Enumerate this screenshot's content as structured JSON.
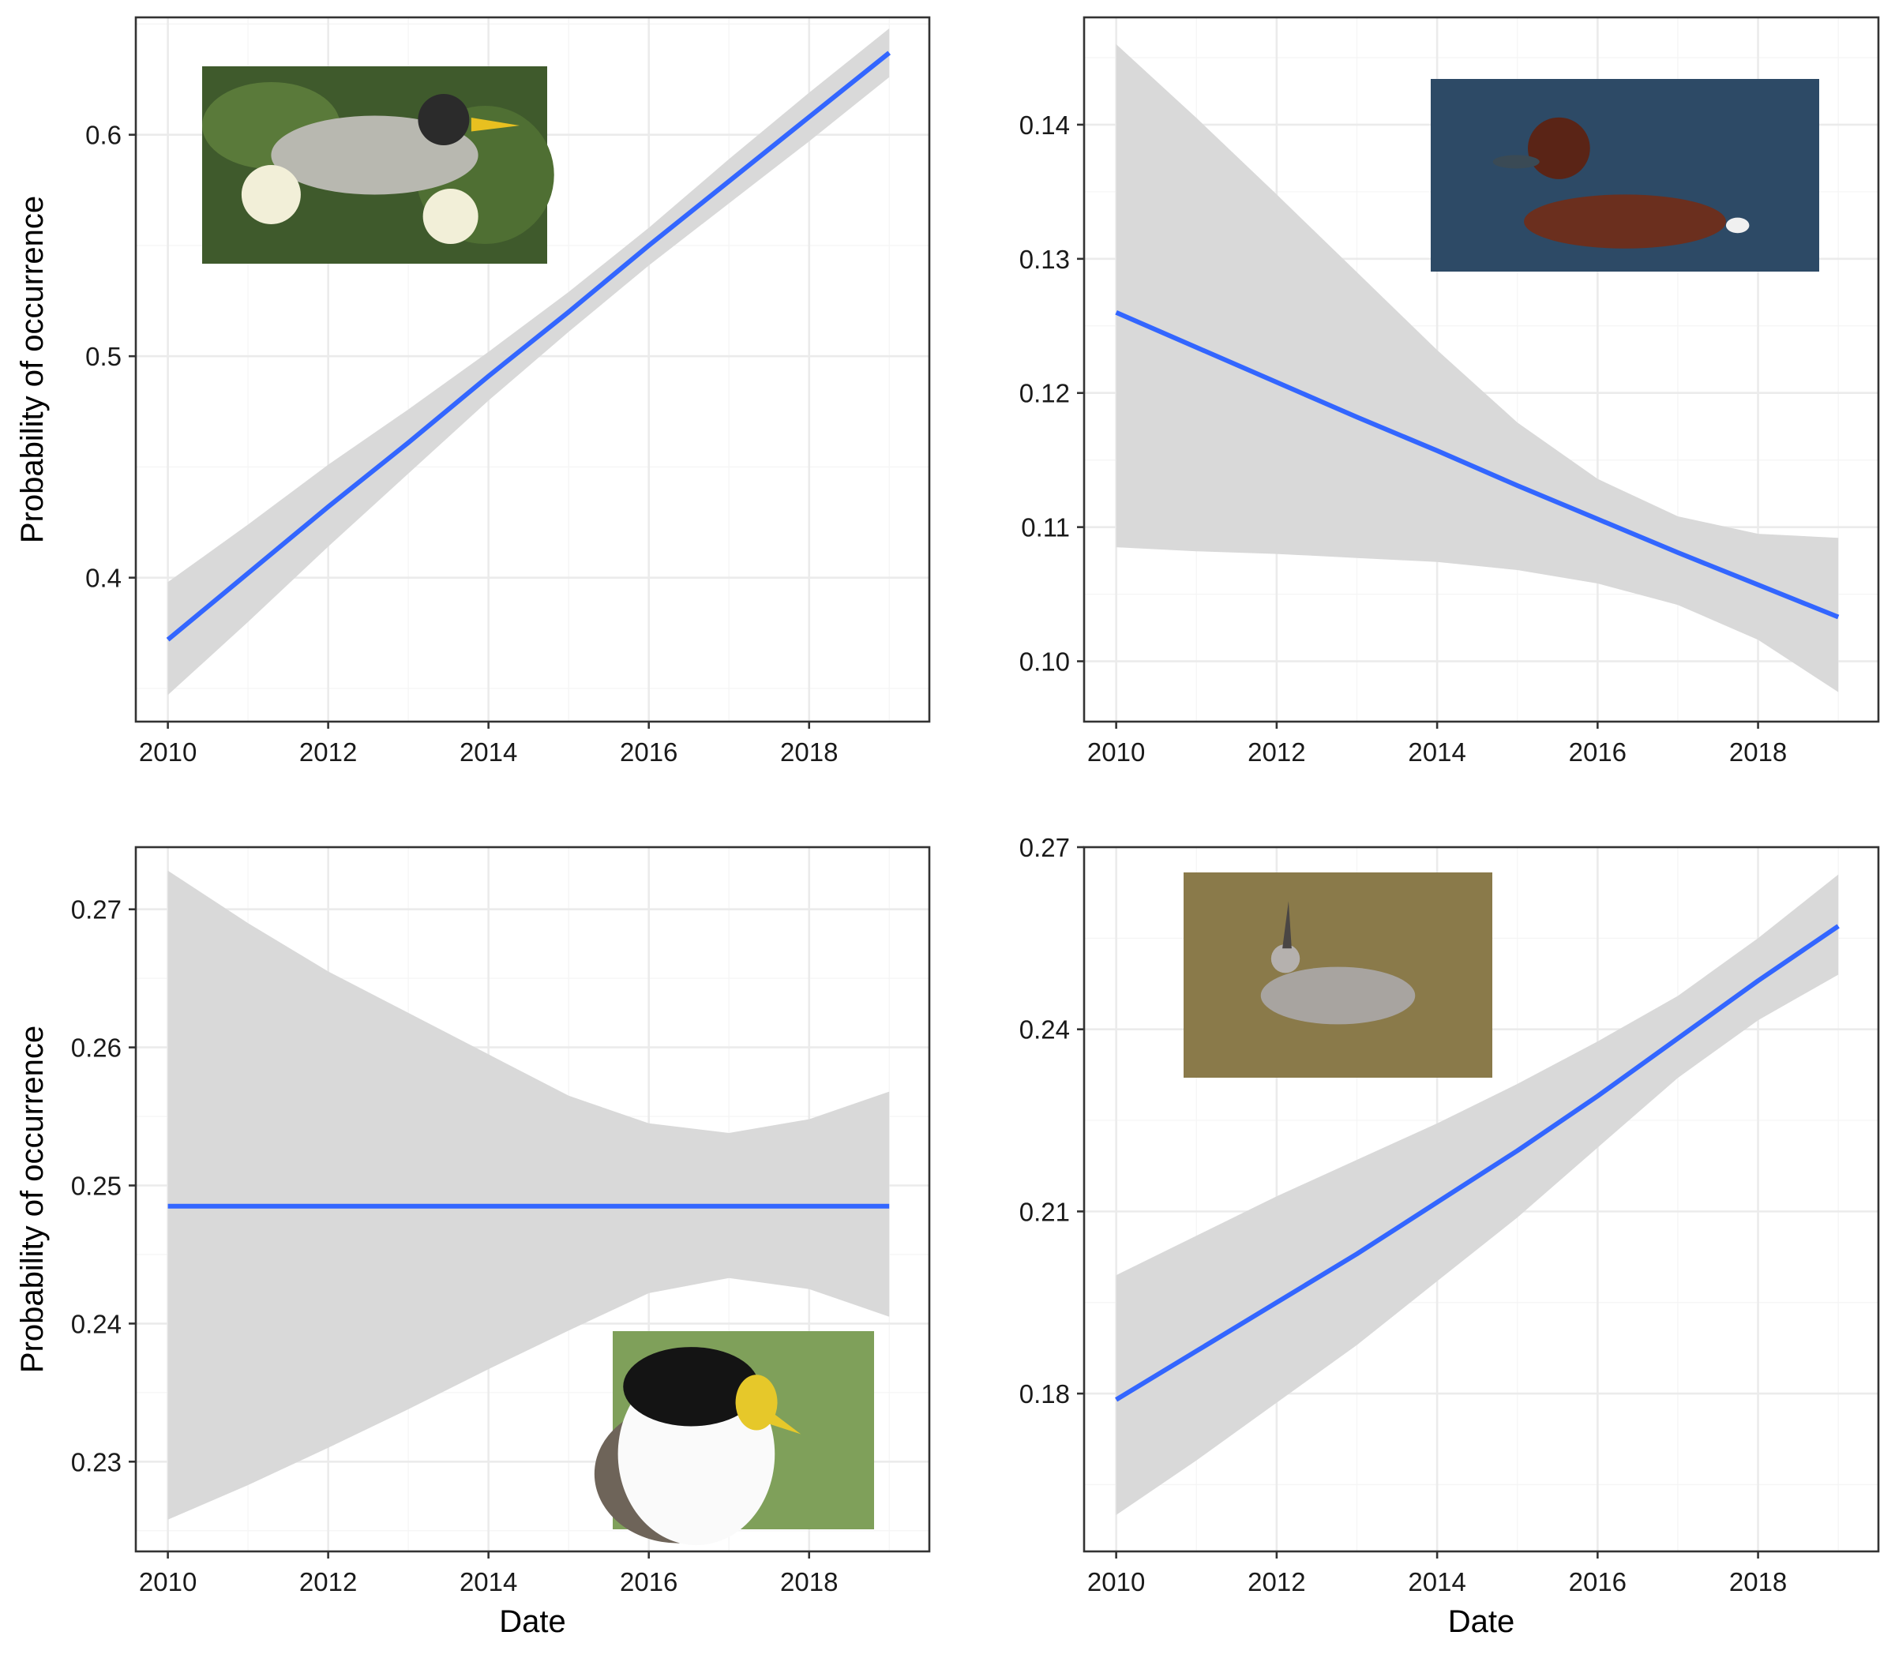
{
  "chart_data": [
    {
      "type": "line",
      "panel": "top-left",
      "image_icon": "noisy-miner-photo",
      "xlabel": "",
      "ylabel": "Probability of occurrence",
      "xlim": [
        2009.6,
        2019.5
      ],
      "ylim": [
        0.335,
        0.653
      ],
      "x_ticks": [
        2010,
        2012,
        2014,
        2016,
        2018
      ],
      "x_tick_labels": [
        "2010",
        "2012",
        "2014",
        "2016",
        "2018"
      ],
      "y_ticks": [
        0.4,
        0.5,
        0.6
      ],
      "y_tick_labels": [
        "0.4",
        "0.5",
        "0.6"
      ],
      "grid": true,
      "series": [
        {
          "line_color": "#3366ff",
          "x": [
            2010,
            2011,
            2012,
            2013,
            2014,
            2015,
            2016,
            2017,
            2018,
            2019
          ],
          "y": [
            0.372,
            0.402,
            0.432,
            0.461,
            0.491,
            0.52,
            0.55,
            0.579,
            0.608,
            0.637
          ],
          "ci_lower": [
            0.347,
            0.38,
            0.414,
            0.447,
            0.48,
            0.511,
            0.541,
            0.569,
            0.597,
            0.626
          ],
          "ci_upper": [
            0.398,
            0.424,
            0.451,
            0.476,
            0.502,
            0.529,
            0.558,
            0.589,
            0.619,
            0.648
          ]
        }
      ]
    },
    {
      "type": "line",
      "panel": "top-right",
      "image_icon": "hardhead-duck-photo",
      "xlabel": "",
      "ylabel": "",
      "xlim": [
        2009.6,
        2019.5
      ],
      "ylim": [
        0.0955,
        0.148
      ],
      "x_ticks": [
        2010,
        2012,
        2014,
        2016,
        2018
      ],
      "x_tick_labels": [
        "2010",
        "2012",
        "2014",
        "2016",
        "2018"
      ],
      "y_ticks": [
        0.1,
        0.11,
        0.12,
        0.13,
        0.14
      ],
      "y_tick_labels": [
        "0.10",
        "0.11",
        "0.12",
        "0.13",
        "0.14"
      ],
      "grid": true,
      "series": [
        {
          "line_color": "#3366ff",
          "x": [
            2010,
            2011,
            2012,
            2013,
            2014,
            2015,
            2016,
            2017,
            2018,
            2019
          ],
          "y": [
            0.126,
            0.1234,
            0.1208,
            0.1182,
            0.1157,
            0.1131,
            0.1106,
            0.1081,
            0.1057,
            0.1033
          ],
          "ci_lower": [
            0.1085,
            0.1082,
            0.108,
            0.1077,
            0.1074,
            0.1068,
            0.1058,
            0.1042,
            0.1016,
            0.0977
          ],
          "ci_upper": [
            0.146,
            0.1405,
            0.1348,
            0.129,
            0.1232,
            0.1178,
            0.1136,
            0.1108,
            0.1095,
            0.1092
          ]
        }
      ]
    },
    {
      "type": "line",
      "panel": "bottom-left",
      "image_icon": "masked-lapwing-photo",
      "xlabel": "Date",
      "ylabel": "Probability of occurrence",
      "xlim": [
        2009.6,
        2019.5
      ],
      "ylim": [
        0.2235,
        0.2745
      ],
      "x_ticks": [
        2010,
        2012,
        2014,
        2016,
        2018
      ],
      "x_tick_labels": [
        "2010",
        "2012",
        "2014",
        "2016",
        "2018"
      ],
      "y_ticks": [
        0.23,
        0.24,
        0.25,
        0.26,
        0.27
      ],
      "y_tick_labels": [
        "0.23",
        "0.24",
        "0.25",
        "0.26",
        "0.27"
      ],
      "grid": true,
      "series": [
        {
          "line_color": "#3366ff",
          "x": [
            2010,
            2011,
            2012,
            2013,
            2014,
            2015,
            2016,
            2017,
            2018,
            2019
          ],
          "y": [
            0.2485,
            0.2485,
            0.2485,
            0.2485,
            0.2485,
            0.2485,
            0.2485,
            0.2485,
            0.2485,
            0.2485
          ],
          "ci_lower": [
            0.2258,
            0.2283,
            0.231,
            0.2338,
            0.2367,
            0.2395,
            0.2422,
            0.2433,
            0.2425,
            0.2405
          ],
          "ci_upper": [
            0.2728,
            0.269,
            0.2655,
            0.2625,
            0.2595,
            0.2565,
            0.2545,
            0.2538,
            0.2548,
            0.2568
          ]
        }
      ]
    },
    {
      "type": "line",
      "panel": "bottom-right",
      "image_icon": "crested-pigeon-photo",
      "xlabel": "Date",
      "ylabel": "",
      "xlim": [
        2009.6,
        2019.5
      ],
      "ylim": [
        0.154,
        0.27
      ],
      "x_ticks": [
        2010,
        2012,
        2014,
        2016,
        2018
      ],
      "x_tick_labels": [
        "2010",
        "2012",
        "2014",
        "2016",
        "2018"
      ],
      "y_ticks": [
        0.18,
        0.21,
        0.24,
        0.27
      ],
      "y_tick_labels": [
        "0.18",
        "0.21",
        "0.24",
        "0.27"
      ],
      "grid": true,
      "series": [
        {
          "line_color": "#3366ff",
          "x": [
            2010,
            2011,
            2012,
            2013,
            2014,
            2015,
            2016,
            2017,
            2018,
            2019
          ],
          "y": [
            0.179,
            0.187,
            0.195,
            0.203,
            0.2115,
            0.22,
            0.229,
            0.2385,
            0.248,
            0.257
          ],
          "ci_lower": [
            0.16,
            0.169,
            0.1785,
            0.188,
            0.1985,
            0.209,
            0.2205,
            0.232,
            0.2415,
            0.249
          ],
          "ci_upper": [
            0.1995,
            0.206,
            0.2125,
            0.2185,
            0.2245,
            0.231,
            0.238,
            0.2455,
            0.255,
            0.2655
          ]
        }
      ]
    }
  ],
  "colors": {
    "line": "#3366ff",
    "ribbon": "#d9d9d9",
    "grid_major": "#ebebeb",
    "grid_minor": "#f5f5f5",
    "panel_border": "#333333",
    "background": "#ffffff"
  }
}
